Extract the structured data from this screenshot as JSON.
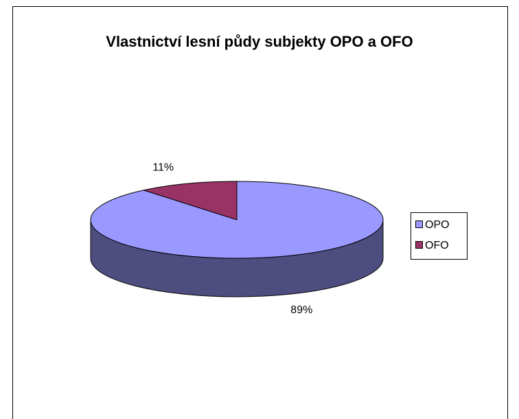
{
  "chart_data": {
    "type": "pie",
    "title": "Vlastnictví lesní půdy subjekty OPO a OFO",
    "categories": [
      "OPO",
      "OFO"
    ],
    "values": [
      89,
      11
    ],
    "value_labels": [
      "89%",
      "11%"
    ],
    "colors": [
      "#9999ff",
      "#993366"
    ],
    "legend": "right"
  }
}
